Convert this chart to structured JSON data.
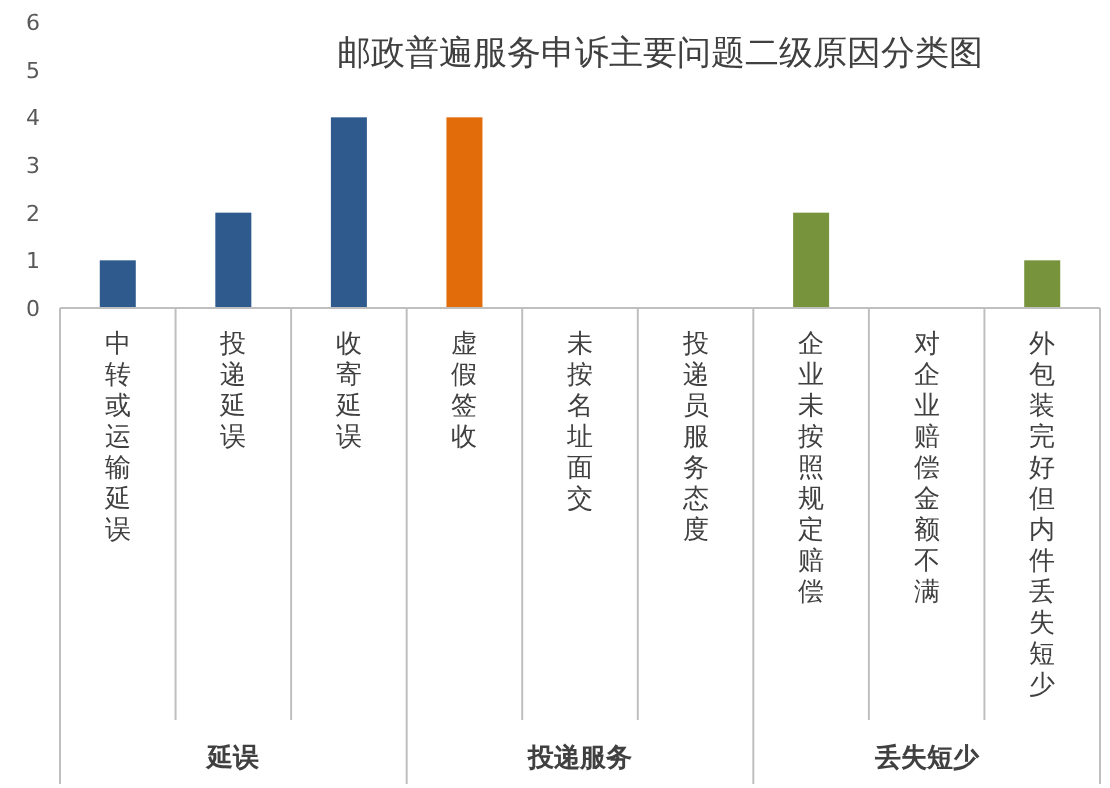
{
  "chart_data": {
    "type": "bar",
    "title": "邮政普遍服务申诉主要问题二级原因分类图",
    "categories": [
      "中转或运输延误",
      "投递延误",
      "收寄延误",
      "虚假签收",
      "未按名址面交",
      "投递员服务态度",
      "企业未按照规定赔偿",
      "对企业赔偿金额不满",
      "外包装完好但内件丢失短少"
    ],
    "values": [
      1,
      2,
      4,
      4,
      0,
      0,
      2,
      0,
      1
    ],
    "colors": [
      "#2e5a8e",
      "#2e5a8e",
      "#2e5a8e",
      "#e36c0a",
      "#e36c0a",
      "#e36c0a",
      "#77933c",
      "#77933c",
      "#77933c"
    ],
    "ylim": [
      0,
      6
    ],
    "yticks": [
      0,
      1,
      2,
      3,
      4,
      5,
      6
    ],
    "grid": false,
    "annotations": [
      "延误",
      "投递服务",
      "丢失短少"
    ]
  }
}
